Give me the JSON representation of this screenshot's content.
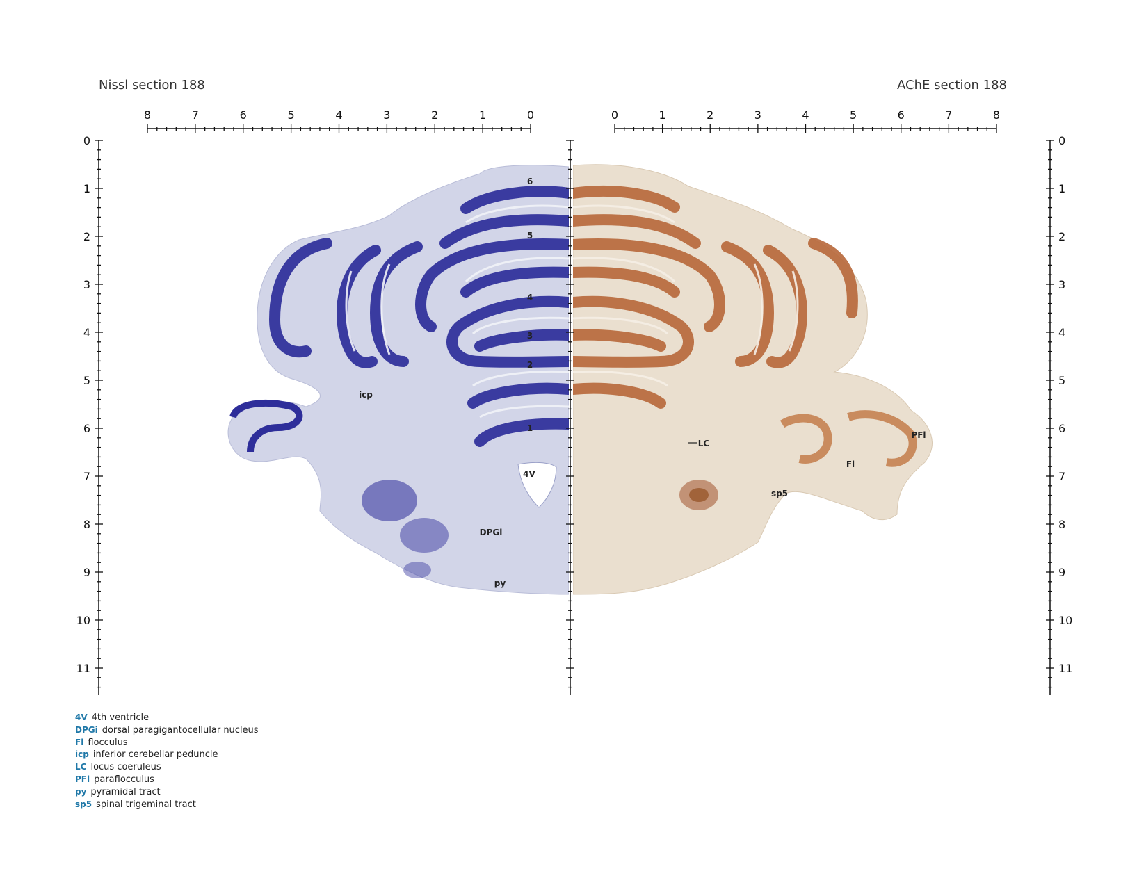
{
  "titles": {
    "left": "Nissl section 188",
    "right": "AChE section 188"
  },
  "scales": {
    "horizontal_left_labels": [
      "8",
      "7",
      "6",
      "5",
      "4",
      "3",
      "2",
      "1",
      "0"
    ],
    "horizontal_right_labels": [
      "0",
      "1",
      "2",
      "3",
      "4",
      "5",
      "6",
      "7",
      "8"
    ],
    "vertical_labels": [
      "0",
      "1",
      "2",
      "3",
      "4",
      "5",
      "6",
      "7",
      "8",
      "9",
      "10",
      "11"
    ]
  },
  "colors": {
    "nissl_stain": "#2e2e9a",
    "nissl_tissue": "#cfd2e6",
    "ache_stain": "#b8683a",
    "ache_tissue": "#e9dccb",
    "legend_abbr": "#1f78a8"
  },
  "lobule_labels": [
    "6",
    "5",
    "4",
    "3",
    "2",
    "1"
  ],
  "region_labels": {
    "icp": "icp",
    "DPGi": "DPGi",
    "py": "py",
    "ventricle": "4V",
    "LC": "LC",
    "sp5": "sp5",
    "Fl": "Fl",
    "PFl": "PFl"
  },
  "legend": [
    {
      "abbr": "4V",
      "desc": "4th ventricle"
    },
    {
      "abbr": "DPGi",
      "desc": "dorsal paragigantocellular nucleus"
    },
    {
      "abbr": "Fl",
      "desc": "flocculus"
    },
    {
      "abbr": "icp",
      "desc": "inferior cerebellar peduncle"
    },
    {
      "abbr": "LC",
      "desc": "locus coeruleus"
    },
    {
      "abbr": "PFl",
      "desc": "paraflocculus"
    },
    {
      "abbr": "py",
      "desc": "pyramidal tract"
    },
    {
      "abbr": "sp5",
      "desc": "spinal trigeminal tract"
    }
  ]
}
